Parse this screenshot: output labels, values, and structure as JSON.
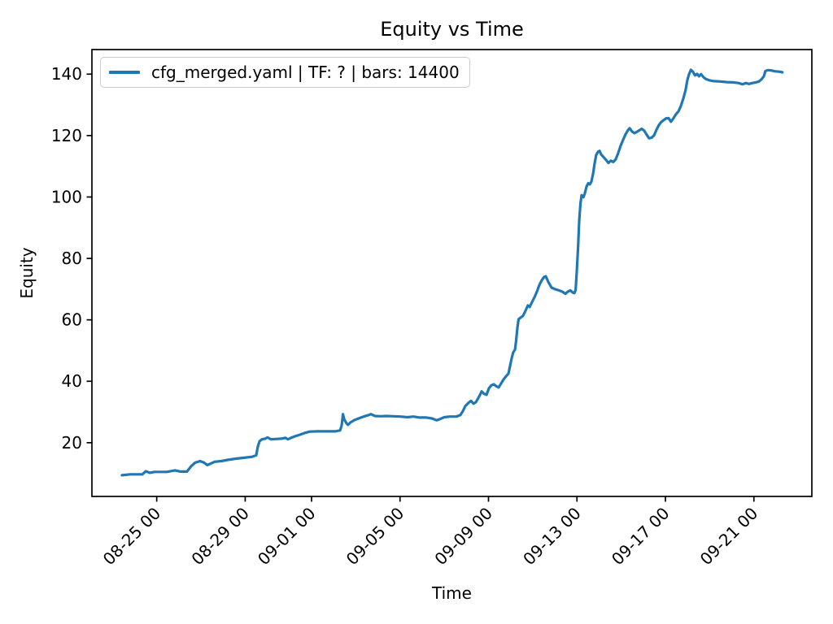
{
  "chart_data": {
    "type": "line",
    "title": "Equity vs Time",
    "xlabel": "Time",
    "ylabel": "Equity",
    "legend_label": "cfg_merged.yaml | TF: ? | bars: 14400",
    "legend_position": "upper left",
    "grid": false,
    "line_color": "#1f77b4",
    "axis_color": "#000000",
    "x_unit": "days since 08-23 00:00",
    "xlim": [
      -0.93,
      31.62
    ],
    "ylim": [
      2.5,
      148.0
    ],
    "x_ticks": [
      {
        "t": 2,
        "label": "08-25 00"
      },
      {
        "t": 6,
        "label": "08-29 00"
      },
      {
        "t": 9,
        "label": "09-01 00"
      },
      {
        "t": 13,
        "label": "09-05 00"
      },
      {
        "t": 17,
        "label": "09-09 00"
      },
      {
        "t": 21,
        "label": "09-13 00"
      },
      {
        "t": 25,
        "label": "09-17 00"
      },
      {
        "t": 29,
        "label": "09-21 00"
      }
    ],
    "y_ticks": [
      20,
      40,
      60,
      80,
      100,
      120,
      140
    ],
    "series": [
      {
        "name": "cfg_merged.yaml | TF: ? | bars: 14400",
        "points": [
          [
            0.43,
            9.4
          ],
          [
            0.8,
            9.7
          ],
          [
            1.35,
            9.7
          ],
          [
            1.5,
            10.7
          ],
          [
            1.68,
            10.2
          ],
          [
            1.9,
            10.5
          ],
          [
            2.45,
            10.5
          ],
          [
            2.82,
            11.0
          ],
          [
            3.08,
            10.6
          ],
          [
            3.37,
            10.6
          ],
          [
            3.56,
            12.4
          ],
          [
            3.74,
            13.5
          ],
          [
            3.96,
            14.0
          ],
          [
            4.14,
            13.5
          ],
          [
            4.29,
            12.7
          ],
          [
            4.44,
            13.2
          ],
          [
            4.62,
            13.8
          ],
          [
            4.92,
            14.0
          ],
          [
            5.21,
            14.4
          ],
          [
            5.58,
            14.8
          ],
          [
            5.95,
            15.1
          ],
          [
            6.31,
            15.4
          ],
          [
            6.5,
            15.9
          ],
          [
            6.57,
            18.7
          ],
          [
            6.65,
            20.5
          ],
          [
            6.76,
            21.1
          ],
          [
            6.9,
            21.3
          ],
          [
            7.01,
            21.7
          ],
          [
            7.16,
            21.1
          ],
          [
            7.38,
            21.2
          ],
          [
            7.64,
            21.3
          ],
          [
            7.82,
            21.6
          ],
          [
            7.93,
            21.1
          ],
          [
            8.08,
            21.6
          ],
          [
            8.26,
            22.1
          ],
          [
            8.48,
            22.6
          ],
          [
            8.7,
            23.2
          ],
          [
            8.92,
            23.6
          ],
          [
            9.26,
            23.7
          ],
          [
            9.7,
            23.7
          ],
          [
            10.07,
            23.7
          ],
          [
            10.29,
            24.0
          ],
          [
            10.36,
            25.6
          ],
          [
            10.42,
            29.3
          ],
          [
            10.47,
            27.7
          ],
          [
            10.58,
            26.3
          ],
          [
            10.65,
            25.8
          ],
          [
            10.76,
            26.6
          ],
          [
            10.95,
            27.4
          ],
          [
            11.13,
            27.9
          ],
          [
            11.35,
            28.5
          ],
          [
            11.54,
            28.9
          ],
          [
            11.68,
            29.3
          ],
          [
            11.87,
            28.7
          ],
          [
            12.13,
            28.6
          ],
          [
            12.38,
            28.7
          ],
          [
            12.68,
            28.6
          ],
          [
            13.01,
            28.5
          ],
          [
            13.34,
            28.3
          ],
          [
            13.6,
            28.5
          ],
          [
            13.89,
            28.2
          ],
          [
            14.19,
            28.2
          ],
          [
            14.44,
            27.9
          ],
          [
            14.66,
            27.3
          ],
          [
            14.81,
            27.7
          ],
          [
            15.0,
            28.3
          ],
          [
            15.25,
            28.5
          ],
          [
            15.55,
            28.5
          ],
          [
            15.73,
            29.0
          ],
          [
            15.84,
            30.3
          ],
          [
            15.95,
            31.9
          ],
          [
            16.1,
            33.0
          ],
          [
            16.21,
            33.6
          ],
          [
            16.32,
            32.7
          ],
          [
            16.43,
            33.2
          ],
          [
            16.58,
            35.1
          ],
          [
            16.69,
            36.7
          ],
          [
            16.8,
            35.9
          ],
          [
            16.91,
            35.6
          ],
          [
            17.02,
            37.7
          ],
          [
            17.13,
            38.7
          ],
          [
            17.24,
            39.0
          ],
          [
            17.35,
            38.4
          ],
          [
            17.46,
            38.0
          ],
          [
            17.57,
            39.3
          ],
          [
            17.68,
            40.6
          ],
          [
            17.79,
            41.6
          ],
          [
            17.9,
            42.5
          ],
          [
            17.98,
            45.1
          ],
          [
            18.05,
            47.5
          ],
          [
            18.12,
            49.4
          ],
          [
            18.2,
            50.3
          ],
          [
            18.25,
            53.3
          ],
          [
            18.31,
            57.6
          ],
          [
            18.36,
            60.2
          ],
          [
            18.45,
            60.7
          ],
          [
            18.56,
            61.3
          ],
          [
            18.67,
            62.9
          ],
          [
            18.78,
            64.7
          ],
          [
            18.86,
            64.2
          ],
          [
            18.97,
            65.8
          ],
          [
            19.08,
            67.4
          ],
          [
            19.19,
            69.2
          ],
          [
            19.3,
            71.3
          ],
          [
            19.41,
            72.9
          ],
          [
            19.52,
            74.0
          ],
          [
            19.59,
            74.2
          ],
          [
            19.7,
            72.4
          ],
          [
            19.85,
            70.5
          ],
          [
            20.0,
            70.0
          ],
          [
            20.18,
            69.6
          ],
          [
            20.33,
            69.2
          ],
          [
            20.48,
            68.5
          ],
          [
            20.59,
            69.2
          ],
          [
            20.7,
            69.6
          ],
          [
            20.81,
            68.9
          ],
          [
            20.88,
            68.7
          ],
          [
            20.94,
            69.7
          ],
          [
            20.99,
            75.6
          ],
          [
            21.05,
            83.5
          ],
          [
            21.1,
            92.2
          ],
          [
            21.16,
            98.0
          ],
          [
            21.21,
            100.6
          ],
          [
            21.29,
            99.9
          ],
          [
            21.36,
            101.2
          ],
          [
            21.43,
            103.3
          ],
          [
            21.51,
            104.5
          ],
          [
            21.58,
            104.1
          ],
          [
            21.65,
            104.9
          ],
          [
            21.73,
            107.6
          ],
          [
            21.8,
            111.0
          ],
          [
            21.87,
            113.7
          ],
          [
            21.95,
            114.7
          ],
          [
            22.02,
            115.0
          ],
          [
            22.09,
            113.9
          ],
          [
            22.2,
            113.0
          ],
          [
            22.31,
            112.1
          ],
          [
            22.42,
            111.1
          ],
          [
            22.53,
            111.8
          ],
          [
            22.64,
            111.4
          ],
          [
            22.75,
            112.2
          ],
          [
            22.86,
            114.2
          ],
          [
            22.97,
            116.6
          ],
          [
            23.08,
            118.5
          ],
          [
            23.19,
            120.3
          ],
          [
            23.3,
            121.7
          ],
          [
            23.38,
            122.4
          ],
          [
            23.49,
            121.3
          ],
          [
            23.6,
            120.8
          ],
          [
            23.71,
            121.2
          ],
          [
            23.82,
            121.7
          ],
          [
            23.93,
            122.2
          ],
          [
            24.04,
            121.6
          ],
          [
            24.15,
            120.3
          ],
          [
            24.26,
            119.1
          ],
          [
            24.37,
            119.3
          ],
          [
            24.48,
            120.0
          ],
          [
            24.59,
            121.8
          ],
          [
            24.7,
            123.4
          ],
          [
            24.81,
            124.4
          ],
          [
            24.92,
            125.0
          ],
          [
            25.03,
            125.6
          ],
          [
            25.14,
            125.7
          ],
          [
            25.25,
            124.5
          ],
          [
            25.36,
            125.6
          ],
          [
            25.47,
            126.9
          ],
          [
            25.58,
            127.8
          ],
          [
            25.69,
            129.5
          ],
          [
            25.8,
            131.9
          ],
          [
            25.91,
            134.8
          ],
          [
            25.99,
            138.0
          ],
          [
            26.06,
            139.8
          ],
          [
            26.15,
            141.4
          ],
          [
            26.24,
            140.8
          ],
          [
            26.34,
            139.6
          ],
          [
            26.43,
            140.1
          ],
          [
            26.52,
            139.3
          ],
          [
            26.61,
            140.0
          ],
          [
            26.72,
            139.0
          ],
          [
            26.83,
            138.4
          ],
          [
            26.98,
            138.0
          ],
          [
            27.2,
            137.7
          ],
          [
            27.49,
            137.6
          ],
          [
            27.79,
            137.4
          ],
          [
            28.08,
            137.3
          ],
          [
            28.3,
            137.1
          ],
          [
            28.49,
            136.7
          ],
          [
            28.63,
            137.1
          ],
          [
            28.78,
            136.8
          ],
          [
            28.93,
            137.1
          ],
          [
            29.08,
            137.3
          ],
          [
            29.23,
            137.6
          ],
          [
            29.34,
            138.3
          ],
          [
            29.45,
            139.3
          ],
          [
            29.52,
            141.0
          ],
          [
            29.63,
            141.3
          ],
          [
            29.78,
            141.2
          ],
          [
            29.96,
            140.9
          ],
          [
            30.15,
            140.8
          ],
          [
            30.29,
            140.6
          ]
        ]
      }
    ]
  }
}
